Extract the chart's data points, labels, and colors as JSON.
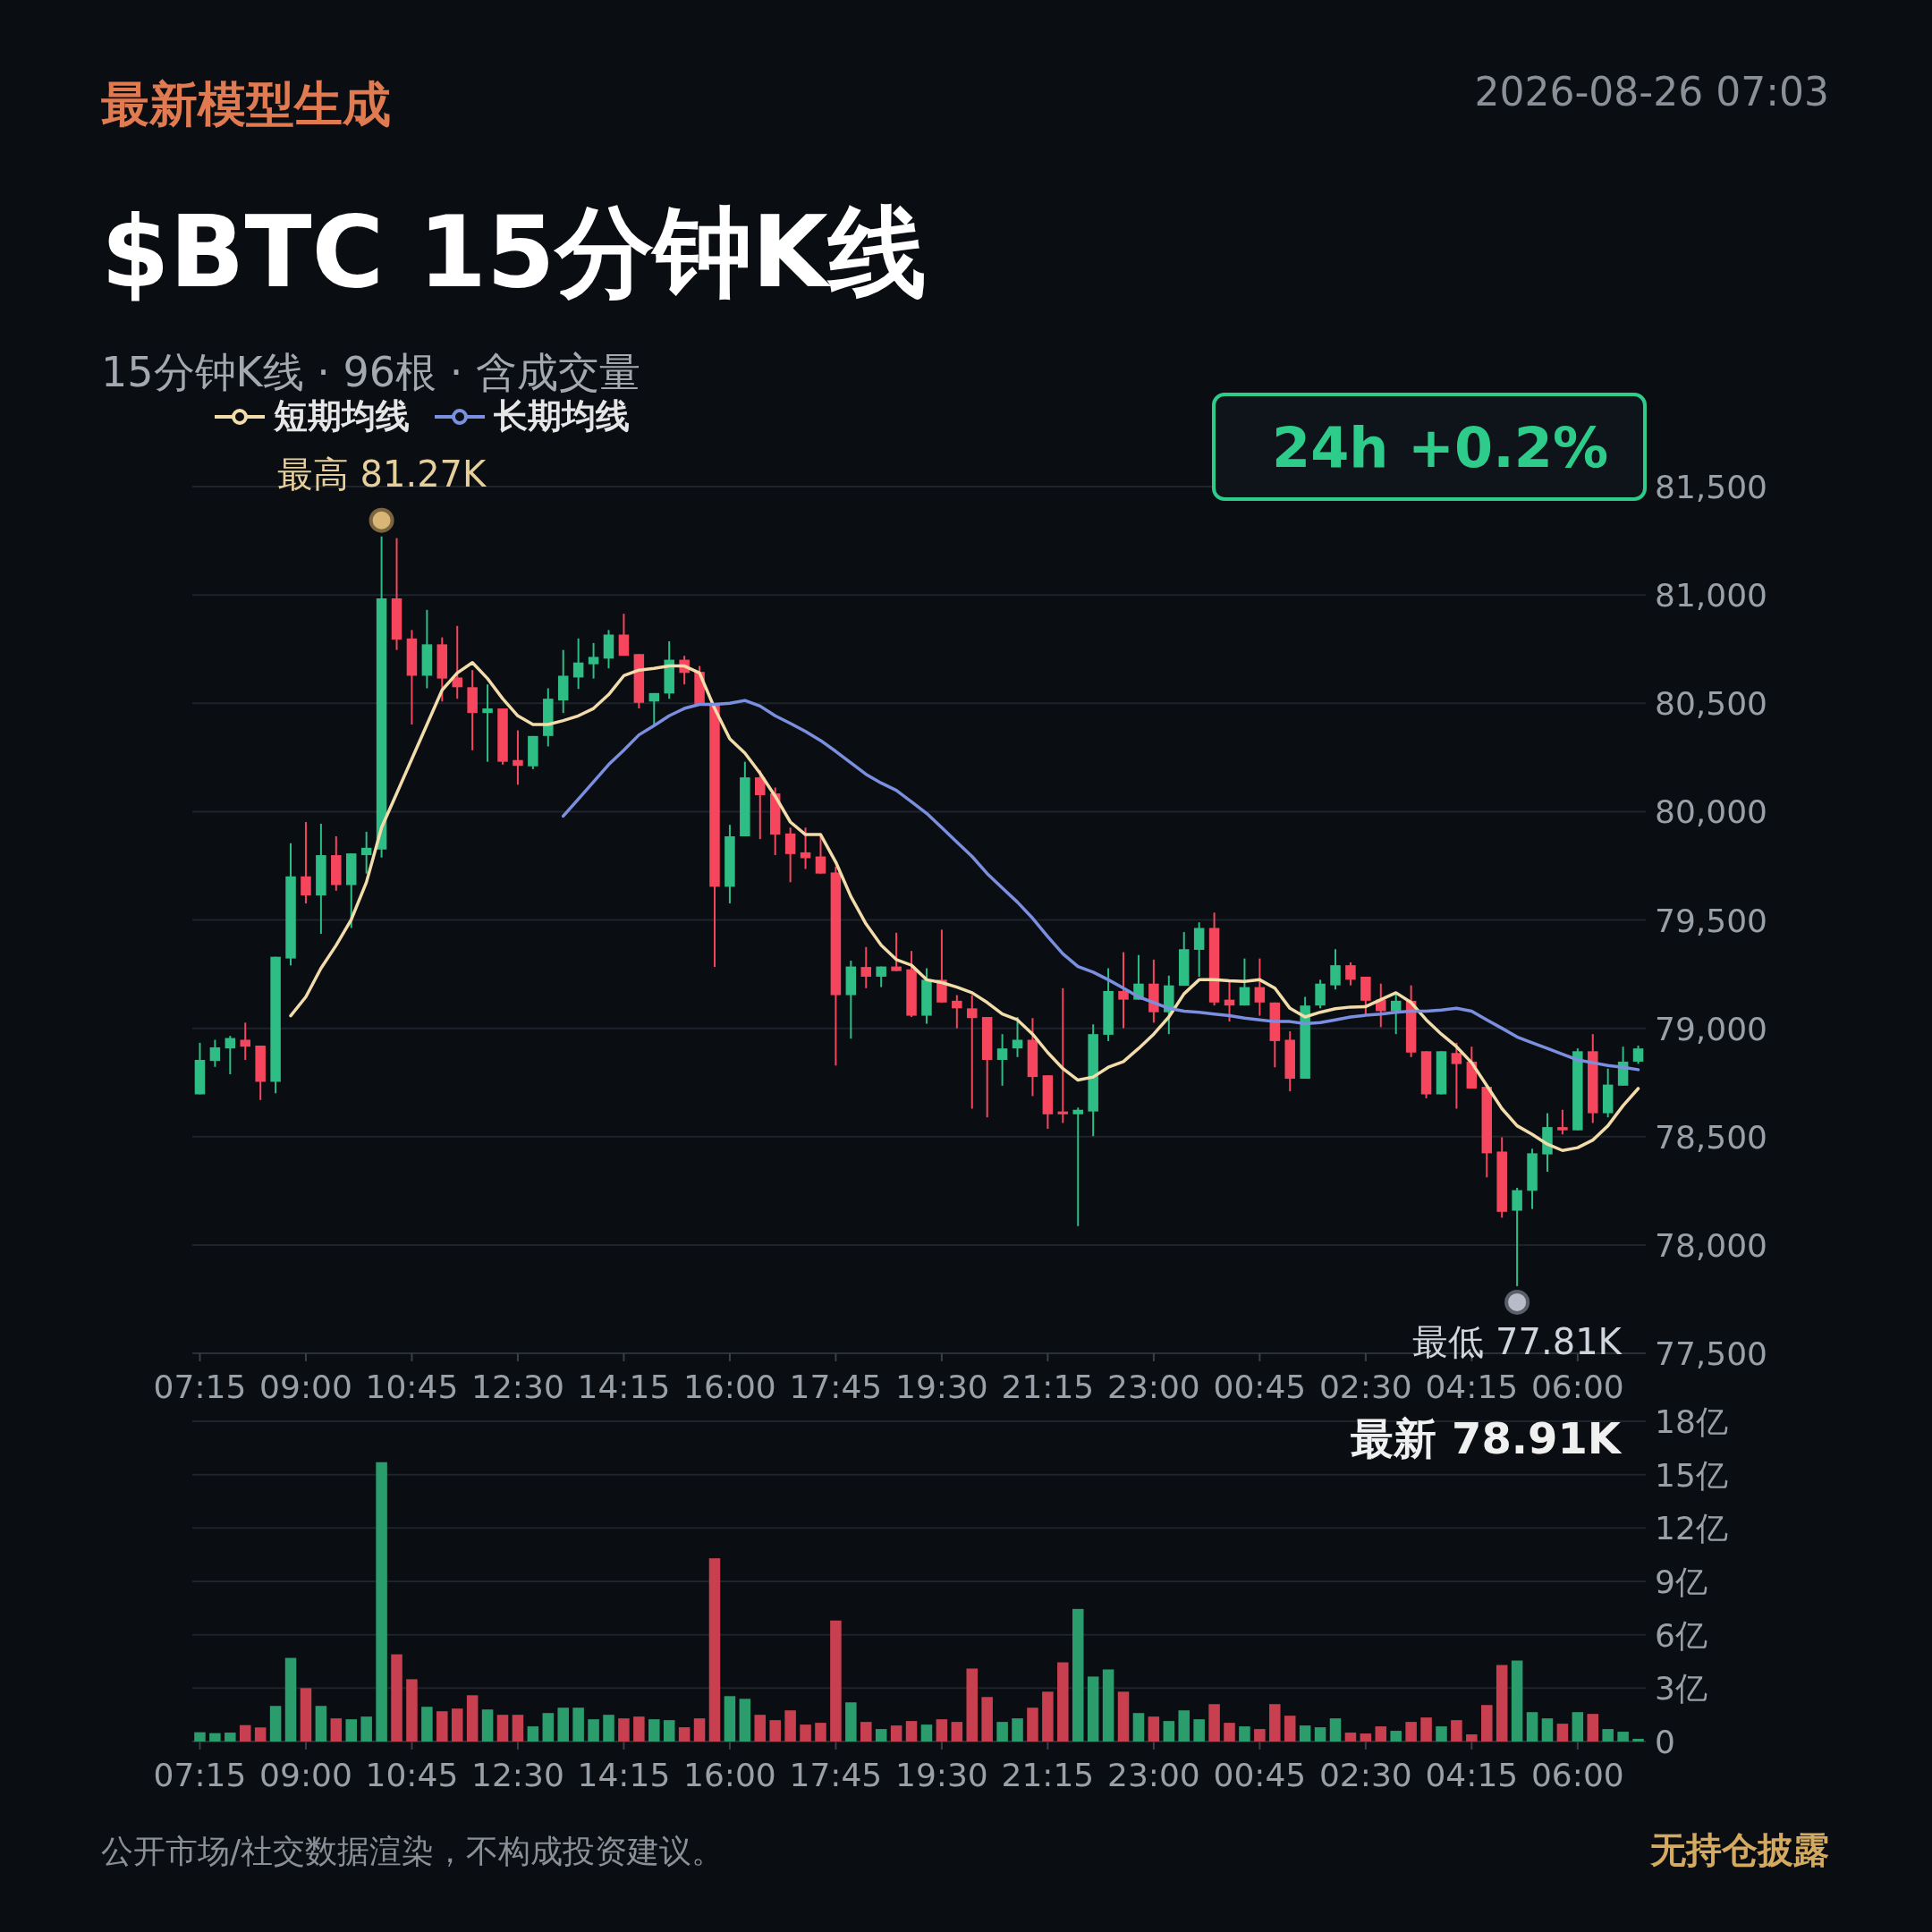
{
  "chart_data": [
    {
      "type": "candlestick",
      "title": "$BTC 15分钟K线",
      "subtitle": "15分钟K线 · 96根 · 含成交量",
      "categories": [
        "07:15",
        null,
        null,
        null,
        null,
        null,
        null,
        "09:00",
        null,
        null,
        null,
        null,
        null,
        null,
        "10:45",
        null,
        null,
        null,
        null,
        null,
        null,
        "12:30",
        null,
        null,
        null,
        null,
        null,
        null,
        "14:15",
        null,
        null,
        null,
        null,
        null,
        null,
        "16:00",
        null,
        null,
        null,
        null,
        null,
        null,
        "17:45",
        null,
        null,
        null,
        null,
        null,
        null,
        "19:30",
        null,
        null,
        null,
        null,
        null,
        null,
        "21:15",
        null,
        null,
        null,
        null,
        null,
        null,
        "23:00",
        null,
        null,
        null,
        null,
        null,
        null,
        "00:45",
        null,
        null,
        null,
        null,
        null,
        null,
        "02:30",
        null,
        null,
        null,
        null,
        null,
        null,
        "04:15",
        null,
        null,
        null,
        null,
        null,
        null,
        "06:00",
        null,
        null,
        null,
        null
      ],
      "ohlc": [
        [
          78695,
          78933,
          78695,
          78854
        ],
        [
          78849,
          78947,
          78822,
          78912
        ],
        [
          78907,
          78965,
          78788,
          78955
        ],
        [
          78947,
          79026,
          78854,
          78915
        ],
        [
          78920,
          78920,
          78669,
          78753
        ],
        [
          78753,
          79330,
          78700,
          79330
        ],
        [
          79322,
          79854,
          79290,
          79701
        ],
        [
          79701,
          79952,
          79576,
          79613
        ],
        [
          79613,
          79944,
          79436,
          79799
        ],
        [
          79799,
          79886,
          79635,
          79661
        ],
        [
          79661,
          79807,
          79463,
          79807
        ],
        [
          79799,
          79907,
          79714,
          79833
        ],
        [
          79825,
          81270,
          79788,
          80984
        ],
        [
          80984,
          81262,
          80746,
          80794
        ],
        [
          80799,
          80838,
          80402,
          80627
        ],
        [
          80627,
          80931,
          80569,
          80772
        ],
        [
          80772,
          80804,
          80508,
          80614
        ],
        [
          80619,
          80857,
          80521,
          80574
        ],
        [
          80574,
          80653,
          80283,
          80455
        ],
        [
          80455,
          80587,
          80230,
          80476
        ],
        [
          80476,
          80476,
          80217,
          80230
        ],
        [
          80238,
          80375,
          80124,
          80211
        ],
        [
          80209,
          80349,
          80196,
          80349
        ],
        [
          80349,
          80569,
          80301,
          80521
        ],
        [
          80513,
          80746,
          80455,
          80627
        ],
        [
          80619,
          80799,
          80566,
          80688
        ],
        [
          80680,
          80778,
          80614,
          80714
        ],
        [
          80706,
          80838,
          80661,
          80817
        ],
        [
          80817,
          80913,
          80719,
          80719
        ],
        [
          80727,
          80727,
          80476,
          80502
        ],
        [
          80508,
          80547,
          80397,
          80547
        ],
        [
          80545,
          80786,
          80521,
          80701
        ],
        [
          80701,
          80719,
          80587,
          80640
        ],
        [
          80645,
          80672,
          80495,
          80495
        ],
        [
          80495,
          80495,
          79283,
          79653
        ],
        [
          79653,
          79939,
          79576,
          79886
        ],
        [
          79886,
          80230,
          79886,
          80158
        ],
        [
          80158,
          80190,
          79873,
          80076
        ],
        [
          80084,
          80111,
          79799,
          79894
        ],
        [
          79899,
          79926,
          79674,
          79804
        ],
        [
          79812,
          79926,
          79735,
          79785
        ],
        [
          79793,
          79886,
          79714,
          79714
        ],
        [
          79719,
          79746,
          78828,
          79153
        ],
        [
          79153,
          79312,
          78952,
          79285
        ],
        [
          79283,
          79375,
          79185,
          79238
        ],
        [
          79238,
          79285,
          79190,
          79285
        ],
        [
          79285,
          79441,
          79264,
          79264
        ],
        [
          79272,
          79357,
          79052,
          79058
        ],
        [
          79058,
          79277,
          79021,
          79224
        ],
        [
          79224,
          79455,
          79119,
          79119
        ],
        [
          79127,
          79153,
          79000,
          79092
        ],
        [
          79092,
          79153,
          78629,
          79047
        ],
        [
          79052,
          79052,
          78589,
          78854
        ],
        [
          78854,
          78973,
          78735,
          78907
        ],
        [
          78907,
          79052,
          78867,
          78947
        ],
        [
          78947,
          79047,
          78687,
          78775
        ],
        [
          78783,
          78783,
          78536,
          78603
        ],
        [
          78616,
          79185,
          78563,
          78603
        ],
        [
          78603,
          78634,
          78087,
          78624
        ],
        [
          78616,
          79018,
          78502,
          78973
        ],
        [
          78970,
          79277,
          78941,
          79172
        ],
        [
          79172,
          79351,
          79000,
          79132
        ],
        [
          79132,
          79338,
          79132,
          79206
        ],
        [
          79206,
          79317,
          79026,
          79074
        ],
        [
          79074,
          79243,
          78973,
          79198
        ],
        [
          79196,
          79444,
          79196,
          79365
        ],
        [
          79362,
          79489,
          79238,
          79463
        ],
        [
          79463,
          79534,
          79105,
          79119
        ],
        [
          79132,
          79224,
          79031,
          79105
        ],
        [
          79105,
          79322,
          79105,
          79190
        ],
        [
          79190,
          79322,
          79058,
          79119
        ],
        [
          79119,
          79119,
          78820,
          78941
        ],
        [
          78947,
          78986,
          78709,
          78767
        ],
        [
          78767,
          79145,
          78767,
          79105
        ],
        [
          79105,
          79224,
          79092,
          79206
        ],
        [
          79198,
          79365,
          79179,
          79291
        ],
        [
          79291,
          79304,
          79198,
          79224
        ],
        [
          79238,
          79238,
          79058,
          79127
        ],
        [
          79132,
          79206,
          79005,
          79079
        ],
        [
          79079,
          79158,
          78973,
          79127
        ],
        [
          79127,
          79198,
          78867,
          78888
        ],
        [
          78894,
          78894,
          78677,
          78695
        ],
        [
          78695,
          78894,
          78695,
          78894
        ],
        [
          78886,
          78933,
          78629,
          78835
        ],
        [
          78846,
          78915,
          78722,
          78722
        ],
        [
          78730,
          78730,
          78312,
          78423
        ],
        [
          78431,
          78497,
          78126,
          78153
        ],
        [
          78158,
          78264,
          77810,
          78253
        ],
        [
          78250,
          78444,
          78166,
          78423
        ],
        [
          78418,
          78608,
          78338,
          78544
        ],
        [
          78544,
          78624,
          78510,
          78529
        ],
        [
          78529,
          78907,
          78529,
          78894
        ],
        [
          78894,
          78973,
          78563,
          78608
        ],
        [
          78608,
          78814,
          78589,
          78740
        ],
        [
          78735,
          78915,
          78735,
          78846
        ],
        [
          78846,
          78920,
          78836,
          78907
        ]
      ],
      "colors": [
        "#2ebd85",
        "#2ebd85",
        "#2ebd85",
        "#f6465d",
        "#f6465d",
        "#2ebd85",
        "#2ebd85",
        "#f6465d",
        "#2ebd85",
        "#f6465d",
        "#2ebd85",
        "#2ebd85",
        "#2ebd85",
        "#f6465d",
        "#f6465d",
        "#2ebd85",
        "#f6465d",
        "#f6465d",
        "#f6465d",
        "#2ebd85",
        "#f6465d",
        "#f6465d",
        "#2ebd85",
        "#2ebd85",
        "#2ebd85",
        "#2ebd85",
        "#2ebd85",
        "#2ebd85",
        "#f6465d",
        "#f6465d",
        "#2ebd85",
        "#2ebd85",
        "#f6465d",
        "#f6465d",
        "#f6465d",
        "#2ebd85",
        "#2ebd85",
        "#f6465d",
        "#f6465d",
        "#f6465d",
        "#f6465d",
        "#f6465d",
        "#f6465d",
        "#2ebd85",
        "#f6465d",
        "#2ebd85",
        "#f6465d",
        "#f6465d",
        "#2ebd85",
        "#f6465d",
        "#f6465d",
        "#f6465d",
        "#f6465d",
        "#2ebd85",
        "#2ebd85",
        "#f6465d",
        "#f6465d",
        "#f6465d",
        "#2ebd85",
        "#2ebd85",
        "#2ebd85",
        "#f6465d",
        "#2ebd85",
        "#f6465d",
        "#2ebd85",
        "#2ebd85",
        "#2ebd85",
        "#f6465d",
        "#f6465d",
        "#2ebd85",
        "#f6465d",
        "#f6465d",
        "#f6465d",
        "#2ebd85",
        "#2ebd85",
        "#2ebd85",
        "#f6465d",
        "#f6465d",
        "#f6465d",
        "#2ebd85",
        "#f6465d",
        "#f6465d",
        "#2ebd85",
        "#f6465d",
        "#f6465d",
        "#f6465d",
        "#f6465d",
        "#2ebd85",
        "#2ebd85",
        "#2ebd85",
        "#f6465d",
        "#2ebd85",
        "#f6465d",
        "#2ebd85",
        "#2ebd85",
        "#2ebd85"
      ],
      "series": [
        {
          "name": "短期均线",
          "type": "line",
          "color": "#f2dcaa",
          "values": [
            null,
            null,
            null,
            null,
            null,
            null,
            79058,
            79145,
            79277,
            79383,
            79502,
            79674,
            79926,
            80084,
            80243,
            80402,
            80561,
            80640,
            80688,
            80614,
            80521,
            80442,
            80402,
            80402,
            80420,
            80442,
            80476,
            80540,
            80627,
            80653,
            80661,
            80672,
            80672,
            80640,
            80476,
            80336,
            80270,
            80177,
            80071,
            79952,
            79894,
            79894,
            79767,
            79608,
            79481,
            79383,
            79317,
            79291,
            79224,
            79211,
            79190,
            79164,
            79119,
            79066,
            79039,
            78973,
            78888,
            78814,
            78761,
            78775,
            78820,
            78846,
            78907,
            78973,
            79052,
            79159,
            79224,
            79224,
            79219,
            79216,
            79224,
            79185,
            79092,
            79052,
            79074,
            79090,
            79098,
            79100,
            79132,
            79164,
            79119,
            79039,
            78973,
            78915,
            78841,
            78735,
            78629,
            78550,
            78510,
            78465,
            78436,
            78449,
            78484,
            78550,
            78643,
            78722
          ]
        },
        {
          "name": "长期均线",
          "type": "line",
          "color": "#7b8fe0",
          "values": [
            null,
            null,
            null,
            null,
            null,
            null,
            null,
            null,
            null,
            null,
            null,
            null,
            null,
            null,
            null,
            null,
            null,
            null,
            null,
            null,
            null,
            null,
            null,
            null,
            79979,
            80058,
            80137,
            80217,
            80283,
            80354,
            80397,
            80442,
            80476,
            80495,
            80495,
            80500,
            80513,
            80487,
            80442,
            80407,
            80370,
            80328,
            80278,
            80225,
            80172,
            80132,
            80098,
            80045,
            79992,
            79926,
            79859,
            79793,
            79714,
            79648,
            79582,
            79508,
            79423,
            79344,
            79285,
            79259,
            79224,
            79185,
            79145,
            79119,
            79092,
            79079,
            79074,
            79066,
            79058,
            79047,
            79039,
            79031,
            79031,
            79021,
            79026,
            79039,
            79052,
            79060,
            79066,
            79074,
            79079,
            79079,
            79084,
            79092,
            79079,
            79039,
            79000,
            78960,
            78933,
            78907,
            78880,
            78854,
            78841,
            78828,
            78820,
            78809
          ]
        }
      ],
      "ylim": [
        77500,
        81500
      ],
      "yticks": [
        {
          "value": 77500,
          "label": "77,500"
        },
        {
          "value": 78000,
          "label": "78,000"
        },
        {
          "value": 78500,
          "label": "78,500"
        },
        {
          "value": 79000,
          "label": "79,000"
        },
        {
          "value": 79500,
          "label": "79,500"
        },
        {
          "value": 80000,
          "label": "80,000"
        },
        {
          "value": 80500,
          "label": "80,500"
        },
        {
          "value": 81000,
          "label": "81,000"
        },
        {
          "value": 81500,
          "label": "81,500"
        }
      ],
      "grid": "y",
      "legend": "top left",
      "annotations": [
        "最新模型生成",
        "2026-08-26 07:03",
        "24h +0.2%",
        {
          "text": "最高 81.27K",
          "y": 81270
        },
        {
          "text": "最低 77.81K",
          "y": 77810
        }
      ]
    },
    {
      "type": "bar",
      "categories": [
        "07:15",
        null,
        null,
        null,
        null,
        null,
        null,
        "09:00",
        null,
        null,
        null,
        null,
        null,
        null,
        "10:45",
        null,
        null,
        null,
        null,
        null,
        null,
        "12:30",
        null,
        null,
        null,
        null,
        null,
        null,
        "14:15",
        null,
        null,
        null,
        null,
        null,
        null,
        "16:00",
        null,
        null,
        null,
        null,
        null,
        null,
        "17:45",
        null,
        null,
        null,
        null,
        null,
        null,
        "19:30",
        null,
        null,
        null,
        null,
        null,
        null,
        "21:15",
        null,
        null,
        null,
        null,
        null,
        null,
        "23:00",
        null,
        null,
        null,
        null,
        null,
        null,
        "00:45",
        null,
        null,
        null,
        null,
        null,
        null,
        "02:30",
        null,
        null,
        null,
        null,
        null,
        null,
        "04:15",
        null,
        null,
        null,
        null,
        null,
        null,
        "06:00",
        null,
        null,
        null,
        null
      ],
      "values": [
        0.52,
        0.47,
        0.5,
        0.92,
        0.79,
        2.0,
        4.7,
        3.0,
        2.0,
        1.3,
        1.25,
        1.4,
        15.7,
        4.9,
        3.5,
        1.95,
        1.7,
        1.85,
        2.6,
        1.8,
        1.5,
        1.5,
        0.85,
        1.6,
        1.9,
        1.9,
        1.25,
        1.5,
        1.3,
        1.4,
        1.25,
        1.2,
        0.8,
        1.3,
        10.3,
        2.55,
        2.4,
        1.5,
        1.2,
        1.75,
        0.95,
        1.05,
        6.8,
        2.2,
        1.1,
        0.7,
        0.9,
        1.15,
        0.95,
        1.25,
        1.1,
        4.1,
        2.5,
        1.1,
        1.3,
        1.9,
        2.8,
        4.45,
        7.45,
        3.65,
        4.05,
        2.8,
        1.6,
        1.4,
        1.15,
        1.75,
        1.25,
        2.1,
        1.05,
        0.85,
        0.7,
        2.1,
        1.45,
        0.9,
        0.8,
        1.3,
        0.5,
        0.45,
        0.85,
        0.6,
        1.1,
        1.35,
        0.85,
        1.2,
        0.4,
        2.05,
        4.3,
        4.55,
        1.65,
        1.3,
        1.0,
        1.65,
        1.55,
        0.7,
        0.55,
        0.15
      ],
      "colors": [
        "#2b9c6b",
        "#2b9c6b",
        "#2b9c6b",
        "#c8404f",
        "#c8404f",
        "#2b9c6b",
        "#2b9c6b",
        "#c8404f",
        "#2b9c6b",
        "#c8404f",
        "#2b9c6b",
        "#2b9c6b",
        "#2b9c6b",
        "#c8404f",
        "#c8404f",
        "#2b9c6b",
        "#c8404f",
        "#c8404f",
        "#c8404f",
        "#2b9c6b",
        "#c8404f",
        "#c8404f",
        "#2b9c6b",
        "#2b9c6b",
        "#2b9c6b",
        "#2b9c6b",
        "#2b9c6b",
        "#2b9c6b",
        "#c8404f",
        "#c8404f",
        "#2b9c6b",
        "#2b9c6b",
        "#c8404f",
        "#c8404f",
        "#c8404f",
        "#2b9c6b",
        "#2b9c6b",
        "#c8404f",
        "#c8404f",
        "#c8404f",
        "#c8404f",
        "#c8404f",
        "#c8404f",
        "#2b9c6b",
        "#c8404f",
        "#2b9c6b",
        "#c8404f",
        "#c8404f",
        "#2b9c6b",
        "#c8404f",
        "#c8404f",
        "#c8404f",
        "#c8404f",
        "#2b9c6b",
        "#2b9c6b",
        "#c8404f",
        "#c8404f",
        "#c8404f",
        "#2b9c6b",
        "#2b9c6b",
        "#2b9c6b",
        "#c8404f",
        "#2b9c6b",
        "#c8404f",
        "#2b9c6b",
        "#2b9c6b",
        "#2b9c6b",
        "#c8404f",
        "#c8404f",
        "#2b9c6b",
        "#c8404f",
        "#c8404f",
        "#c8404f",
        "#2b9c6b",
        "#2b9c6b",
        "#2b9c6b",
        "#c8404f",
        "#c8404f",
        "#c8404f",
        "#2b9c6b",
        "#c8404f",
        "#c8404f",
        "#2b9c6b",
        "#c8404f",
        "#c8404f",
        "#c8404f",
        "#c8404f",
        "#2b9c6b",
        "#2b9c6b",
        "#2b9c6b",
        "#c8404f",
        "#2b9c6b",
        "#c8404f",
        "#2b9c6b",
        "#2b9c6b",
        "#2b9c6b"
      ],
      "ylim": [
        0,
        18
      ],
      "yticks": [
        0,
        {
          "value": 3,
          "label": "3亿"
        },
        {
          "value": 6,
          "label": "6亿"
        },
        {
          "value": 9,
          "label": "9亿"
        },
        {
          "value": 12,
          "label": "12亿"
        },
        {
          "value": 15,
          "label": "15亿"
        },
        {
          "value": 18,
          "label": "18亿"
        }
      ],
      "grid": "y",
      "annotations": [
        "最新 78.91K",
        "公开市场/社交数据渲染，不构成投资建议。",
        "无持仓披露"
      ]
    }
  ]
}
